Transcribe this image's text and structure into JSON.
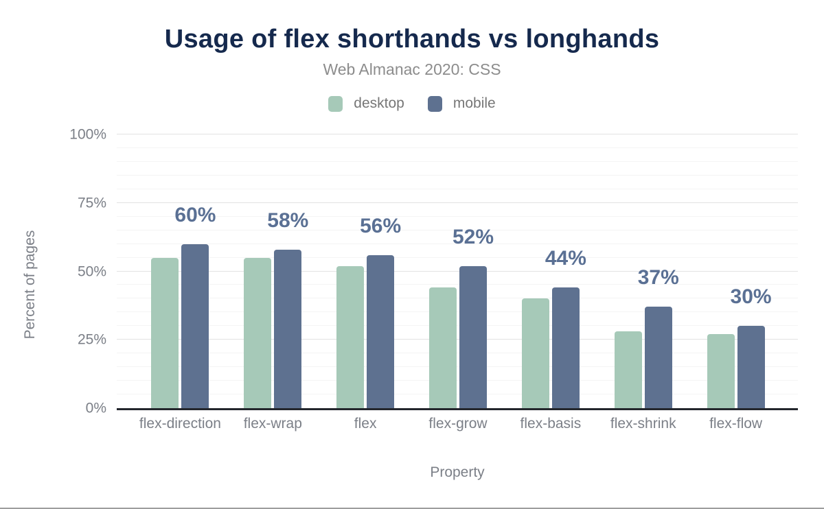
{
  "chart_data": {
    "type": "bar",
    "title": "Usage of flex shorthands vs longhands",
    "subtitle": "Web Almanac 2020: CSS",
    "xlabel": "Property",
    "ylabel": "Percent of pages",
    "categories": [
      "flex-direction",
      "flex-wrap",
      "flex",
      "flex-grow",
      "flex-basis",
      "flex-shrink",
      "flex-flow"
    ],
    "series": [
      {
        "name": "desktop",
        "color": "#a6c9b8",
        "values": [
          55,
          55,
          52,
          44,
          40,
          28,
          27
        ]
      },
      {
        "name": "mobile",
        "color": "#5e7190",
        "values": [
          60,
          58,
          56,
          52,
          44,
          37,
          30
        ],
        "labels": [
          "60%",
          "58%",
          "56%",
          "52%",
          "44%",
          "37%",
          "30%"
        ]
      }
    ],
    "ylim": [
      0,
      100
    ],
    "ytick_labels": [
      "0%",
      "25%",
      "50%",
      "75%",
      "100%"
    ],
    "major_grid_step": 25,
    "minor_grid_step": 5,
    "grid": true,
    "legend_position": "top"
  }
}
